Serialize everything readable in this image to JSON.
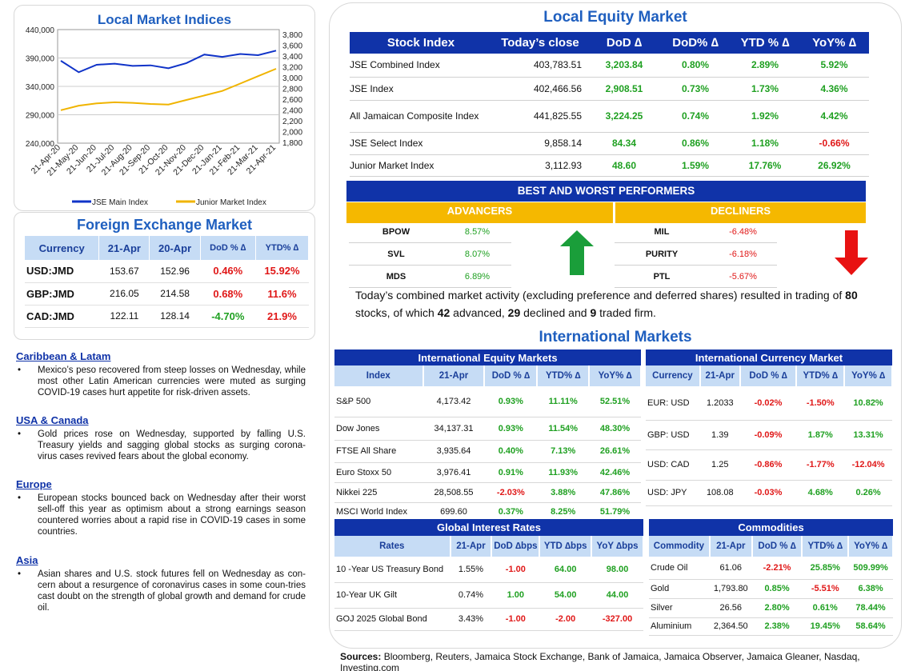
{
  "chart_data": {
    "type": "line",
    "title": "Local Market Indices",
    "x_labels": [
      "21-Apr-20",
      "21-May-20",
      "21-Jun-20",
      "21-Jul-20",
      "21-Aug-20",
      "21-Sep-20",
      "21-Oct-20",
      "21-Nov-20",
      "21-Dec-20",
      "21-Jan-21",
      "21-Feb-21",
      "21-Mar-21",
      "21-Apr-21"
    ],
    "left_axis": {
      "ticks": [
        "440,000",
        "390,000",
        "340,000",
        "290,000",
        "240,000"
      ],
      "range": [
        240000,
        440000
      ]
    },
    "right_axis": {
      "ticks": [
        "3,800",
        "3,600",
        "3,400",
        "3,200",
        "3,000",
        "2,800",
        "2,600",
        "2,400",
        "2,200",
        "2,000",
        "1,800"
      ],
      "range": [
        1800,
        3800
      ]
    },
    "series": [
      {
        "name": "JSE Main Index",
        "axis": "left",
        "color": "#1033c8",
        "values": [
          385000,
          365000,
          378000,
          380000,
          376000,
          377000,
          372000,
          381000,
          396000,
          392000,
          397000,
          395000,
          403000
        ]
      },
      {
        "name": "Junior Market Index",
        "axis": "right",
        "color": "#f0b400",
        "values": [
          2380,
          2460,
          2500,
          2520,
          2510,
          2490,
          2480,
          2560,
          2640,
          2720,
          2850,
          2980,
          3110
        ]
      }
    ],
    "grid": true,
    "legend_position": "bottom"
  },
  "fx": {
    "title": "Foreign Exchange Market",
    "headers": [
      "Currency",
      "21-Apr",
      "20-Apr",
      "DoD % ∆",
      "YTD% ∆"
    ],
    "rows": [
      {
        "cur": "USD:JMD",
        "a": "153.67",
        "b": "152.96",
        "dod": "0.46%",
        "ytd": "15.92%",
        "dod_c": "neg",
        "ytd_c": "neg"
      },
      {
        "cur": "GBP:JMD",
        "a": "216.05",
        "b": "214.58",
        "dod": "0.68%",
        "ytd": "11.6%",
        "dod_c": "neg",
        "ytd_c": "neg"
      },
      {
        "cur": "CAD:JMD",
        "a": "122.11",
        "b": "128.14",
        "dod": "-4.70%",
        "ytd": "21.9%",
        "dod_c": "pos",
        "ytd_c": "neg"
      }
    ]
  },
  "news": [
    {
      "h": "Caribbean & Latam",
      "t": "Mexico’s peso recovered from steep losses on Wednesday, while most other Latin American currencies were muted as surging COVID-19 cases hurt appetite for risk-driven assets."
    },
    {
      "h": "USA & Canada",
      "t": "Gold prices rose on Wednesday, supported by falling U.S. Treasury yields and sagging global stocks as surging corona-virus cases revived fears about the global economy."
    },
    {
      "h": "Europe",
      "t": "European stocks bounced back on Wednesday after their worst sell-off this year as optimism about a strong earnings season countered worries about a rapid rise in COVID-19 cases in some countries."
    },
    {
      "h": "Asia",
      "t": "Asian shares and U.S. stock futures fell on Wednesday as con-cern about a resurgence of coronavirus cases in some coun-tries cast doubt on the strength of global growth and demand for crude oil."
    }
  ],
  "equity": {
    "title": "Local Equity Market",
    "headers": [
      "Stock Index",
      "Today’s close",
      "DoD  ∆",
      "DoD% ∆",
      "YTD % ∆",
      "YoY% ∆"
    ],
    "rows": [
      {
        "n": "JSE Combined Index",
        "c": "403,783.51",
        "d": "3,203.84",
        "dp": "0.80%",
        "y": "2.89%",
        "yy": "5.92%",
        "yyc": "pos"
      },
      {
        "n": "JSE Index",
        "c": "402,466.56",
        "d": "2,908.51",
        "dp": "0.73%",
        "y": "1.73%",
        "yy": "4.36%",
        "yyc": "pos"
      },
      {
        "n": "All Jamaican Composite Index",
        "c": "441,825.55",
        "d": "3,224.25",
        "dp": "0.74%",
        "y": "1.92%",
        "yy": "4.42%",
        "yyc": "pos"
      },
      {
        "n": "JSE Select Index",
        "c": "9,858.14",
        "d": "84.34",
        "dp": "0.86%",
        "y": "1.18%",
        "yy": "-0.66%",
        "yyc": "neg"
      },
      {
        "n": "Junior Market Index",
        "c": "3,112.93",
        "d": "48.60",
        "dp": "1.59%",
        "y": "17.76%",
        "yy": "26.92%",
        "yyc": "pos"
      }
    ]
  },
  "performers": {
    "title": "BEST AND WORST PERFORMERS",
    "adv_label": "ADVANCERS",
    "dec_label": "DECLINERS",
    "advancers": [
      {
        "n": "BPOW",
        "v": "8.57%"
      },
      {
        "n": "SVL",
        "v": "8.07%"
      },
      {
        "n": "MDS",
        "v": "6.89%"
      }
    ],
    "decliners": [
      {
        "n": "MIL",
        "v": "-6.48%"
      },
      {
        "n": "PURITY",
        "v": "-6.18%"
      },
      {
        "n": "PTL",
        "v": "-5.67%"
      }
    ]
  },
  "activity": {
    "p1": "Today’s combined market activity (excluding preference and deferred shares) resulted in trading of ",
    "n1": "80",
    "p2": " stocks, of which ",
    "n2": "42",
    "p3": " advanced, ",
    "n3": "29",
    "p4": " declined and ",
    "n4": "9",
    "p5": " traded firm."
  },
  "intl_title": "International Markets",
  "intl_equity": {
    "title": "International Equity Markets",
    "headers": [
      "Index",
      "21-Apr",
      "DoD % ∆",
      "YTD% ∆",
      "YoY% ∆"
    ],
    "rows": [
      {
        "n": "S&P 500",
        "v": "4,173.42",
        "d": "0.93%",
        "dc": "pos",
        "y": "11.11%",
        "yc": "pos",
        "yy": "52.51%",
        "yyc": "pos"
      },
      {
        "n": "Dow Jones",
        "v": "34,137.31",
        "d": "0.93%",
        "dc": "pos",
        "y": "11.54%",
        "yc": "pos",
        "yy": "48.30%",
        "yyc": "pos"
      },
      {
        "n": "FTSE All Share",
        "v": "3,935.64",
        "d": "0.40%",
        "dc": "pos",
        "y": "7.13%",
        "yc": "pos",
        "yy": "26.61%",
        "yyc": "pos"
      },
      {
        "n": "Euro Stoxx 50",
        "v": "3,976.41",
        "d": "0.91%",
        "dc": "pos",
        "y": "11.93%",
        "yc": "pos",
        "yy": "42.46%",
        "yyc": "pos"
      },
      {
        "n": "Nikkei 225",
        "v": "28,508.55",
        "d": "-2.03%",
        "dc": "neg",
        "y": "3.88%",
        "yc": "pos",
        "yy": "47.86%",
        "yyc": "pos"
      },
      {
        "n": "MSCI World Index",
        "v": "699.60",
        "d": "0.37%",
        "dc": "pos",
        "y": "8.25%",
        "yc": "pos",
        "yy": "51.79%",
        "yyc": "pos"
      }
    ]
  },
  "intl_fx": {
    "title": "International Currency Market",
    "headers": [
      "Currency",
      "21-Apr",
      "DoD % ∆",
      "YTD% ∆",
      "YoY% ∆"
    ],
    "rows": [
      {
        "n": "EUR: USD",
        "v": "1.2033",
        "d": "-0.02%",
        "dc": "neg",
        "y": "-1.50%",
        "yc": "neg",
        "yy": "10.82%",
        "yyc": "pos"
      },
      {
        "n": "GBP: USD",
        "v": "1.39",
        "d": "-0.09%",
        "dc": "neg",
        "y": "1.87%",
        "yc": "pos",
        "yy": "13.31%",
        "yyc": "pos"
      },
      {
        "n": "USD: CAD",
        "v": "1.25",
        "d": "-0.86%",
        "dc": "neg",
        "y": "-1.77%",
        "yc": "neg",
        "yy": "-12.04%",
        "yyc": "neg"
      },
      {
        "n": "USD: JPY",
        "v": "108.08",
        "d": "-0.03%",
        "dc": "neg",
        "y": "4.68%",
        "yc": "pos",
        "yy": "0.26%",
        "yyc": "pos"
      }
    ]
  },
  "rates": {
    "title": "Global Interest Rates",
    "headers": [
      "Rates",
      "21-Apr",
      "DoD ∆bps",
      "YTD ∆bps",
      "YoY ∆bps"
    ],
    "rows": [
      {
        "n": "10 -Year US Treasury Bond",
        "v": "1.55%",
        "d": "-1.00",
        "dc": "neg",
        "y": "64.00",
        "yc": "pos",
        "yy": "98.00",
        "yyc": "pos"
      },
      {
        "n": "10-Year UK Gilt",
        "v": "0.74%",
        "d": "1.00",
        "dc": "pos",
        "y": "54.00",
        "yc": "pos",
        "yy": "44.00",
        "yyc": "pos"
      },
      {
        "n": "GOJ 2025 Global Bond",
        "v": "3.43%",
        "d": "-1.00",
        "dc": "neg",
        "y": "-2.00",
        "yc": "neg",
        "yy": "-327.00",
        "yyc": "neg"
      }
    ]
  },
  "commod": {
    "title": "Commodities",
    "headers": [
      "Commodity",
      "21-Apr",
      "DoD % ∆",
      "YTD% ∆",
      "YoY% ∆"
    ],
    "rows": [
      {
        "n": "Crude Oil",
        "v": "61.06",
        "d": "-2.21%",
        "dc": "neg",
        "y": "25.85%",
        "yc": "pos",
        "yy": "509.99%",
        "yyc": "pos"
      },
      {
        "n": "Gold",
        "v": "1,793.80",
        "d": "0.85%",
        "dc": "pos",
        "y": "-5.51%",
        "yc": "neg",
        "yy": "6.38%",
        "yyc": "pos"
      },
      {
        "n": "Silver",
        "v": "26.56",
        "d": "2.80%",
        "dc": "pos",
        "y": "0.61%",
        "yc": "pos",
        "yy": "78.44%",
        "yyc": "pos"
      },
      {
        "n": "Aluminium",
        "v": "2,364.50",
        "d": "2.38%",
        "dc": "pos",
        "y": "19.45%",
        "yc": "pos",
        "yy": "58.64%",
        "yyc": "pos"
      }
    ]
  },
  "sources": {
    "label": "Sources:",
    "text": " Bloomberg, Reuters, Jamaica Stock Exchange, Bank of Jamaica, Jamaica Observer, Jamaica Gleaner, Nasdaq, Investing.com"
  }
}
